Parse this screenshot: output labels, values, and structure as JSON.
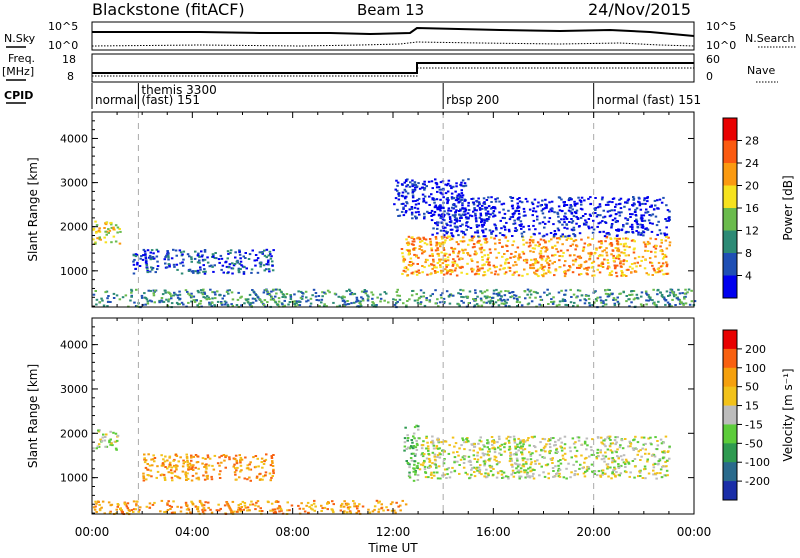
{
  "header": {
    "station": "Blackstone (fitACF)",
    "beam": "Beam 13",
    "date": "24/Nov/2015"
  },
  "top_panels": {
    "nsky_label": "N.Sky",
    "nsky_ticks": [
      "10^5",
      "10^0"
    ],
    "nsearch_label": "N.Search",
    "nsearch_ticks": [
      "10^5",
      "10^0"
    ],
    "freq_label": "Freq.",
    "freq_unit": "[MHz]",
    "freq_ticks": [
      "18",
      "8"
    ],
    "nave_label": "Nave",
    "nave_ticks": [
      "60",
      "0"
    ],
    "cpid_label": "CPID"
  },
  "cpid_segments": [
    {
      "start": 0,
      "label": "normal"
    },
    {
      "start": 1.85,
      "label": "themis 3300"
    },
    {
      "start": 1.85,
      "label": "(fast) 151"
    },
    {
      "start": 14.0,
      "label": "rbsp 200"
    },
    {
      "start": 20.0,
      "label": "normal (fast) 151"
    }
  ],
  "chart_data": [
    {
      "type": "heatmap",
      "name": "Power",
      "x_unit": "hours UT",
      "xlim": [
        0,
        24
      ],
      "ylabel": "Slant Range [km]",
      "ylim": [
        180,
        4600
      ],
      "yticks": [
        "1000",
        "2000",
        "3000",
        "4000"
      ],
      "colorbar_label": "Power [dB]",
      "colorbar_ticks": [
        "28",
        "24",
        "20",
        "16",
        "12",
        "8",
        "4"
      ],
      "colors": [
        "#0000ee",
        "#1f4fb4",
        "#2c8a75",
        "#6abb4c",
        "#f6e21e",
        "#fb9a10",
        "#fb5a10",
        "#e80000"
      ],
      "regions": [
        {
          "t": [
            0.0,
            1.1
          ],
          "r": [
            1600,
            2150
          ],
          "level": 4
        },
        {
          "t": [
            1.6,
            7.2
          ],
          "r": [
            950,
            1500
          ],
          "level": 1
        },
        {
          "t": [
            12.3,
            23.0
          ],
          "r": [
            900,
            1800
          ],
          "level": 5
        },
        {
          "t": [
            13.5,
            23.0
          ],
          "r": [
            1800,
            2700
          ],
          "level": 0
        },
        {
          "t": [
            12.0,
            15.0
          ],
          "r": [
            2200,
            3100
          ],
          "level": 0
        },
        {
          "t": [
            0.0,
            24.0
          ],
          "r": [
            200,
            600
          ],
          "level": 2
        }
      ]
    },
    {
      "type": "heatmap",
      "name": "Velocity",
      "x_unit": "hours UT",
      "xlim": [
        0,
        24
      ],
      "xlabel": "Time UT",
      "xticks": [
        "00:00",
        "04:00",
        "08:00",
        "12:00",
        "16:00",
        "20:00",
        "00:00"
      ],
      "ylabel": "Slant Range [km]",
      "ylim": [
        180,
        4600
      ],
      "yticks": [
        "1000",
        "2000",
        "3000",
        "4000"
      ],
      "colorbar_label": "Velocity [m s⁻¹]",
      "colorbar_ticks": [
        "200",
        "100",
        "50",
        "15",
        "-15",
        "-50",
        "-100",
        "-200"
      ],
      "colors": [
        "#1a2ea8",
        "#2a6a8c",
        "#2e9a50",
        "#5ccc3a",
        "#bcbcbc",
        "#f2c21a",
        "#f5a00d",
        "#f86010",
        "#e80000"
      ],
      "regions": [
        {
          "t": [
            0.0,
            1.0
          ],
          "r": [
            1650,
            2100
          ],
          "level": 4
        },
        {
          "t": [
            2.0,
            7.2
          ],
          "r": [
            950,
            1550
          ],
          "level": 6
        },
        {
          "t": [
            12.4,
            13.0
          ],
          "r": [
            900,
            2200
          ],
          "level": 3
        },
        {
          "t": [
            13.0,
            23.0
          ],
          "r": [
            1000,
            1950
          ],
          "level": 4
        },
        {
          "t": [
            0.0,
            12.5
          ],
          "r": [
            200,
            500
          ],
          "level": 6
        }
      ]
    }
  ]
}
